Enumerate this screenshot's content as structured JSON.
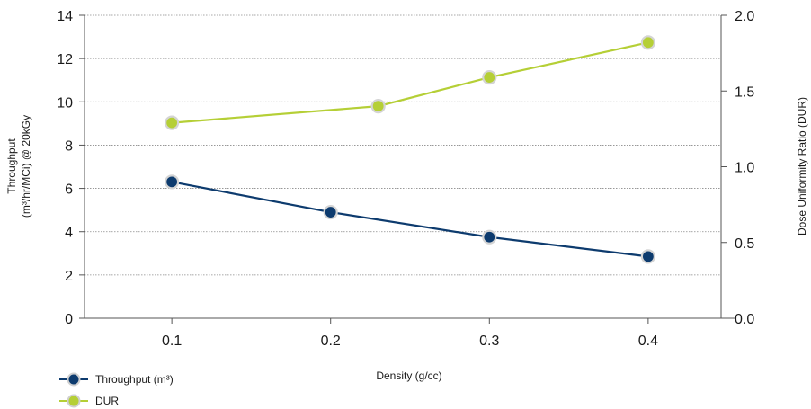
{
  "chart_data": {
    "type": "line",
    "xlabel": "Density (g/cc)",
    "ylabel_left": [
      "Throughput",
      "(m³/hr/MCi) @ 20kGy"
    ],
    "ylabel_right": "Dose Uniformity Ratio (DUR)",
    "x_ticks": [
      "0.1",
      "0.2",
      "0.3",
      "0.4"
    ],
    "xlim": [
      0.045,
      0.455
    ],
    "y_left_ticks": [
      "0",
      "2",
      "4",
      "6",
      "8",
      "10",
      "12",
      "14"
    ],
    "y_left_lim": [
      0,
      14
    ],
    "y_right_ticks": [
      "0.0",
      "0.5",
      "1.0",
      "1.5",
      "2.0"
    ],
    "y_right_lim": [
      0,
      2
    ],
    "grid": "horizontal dotted",
    "legend_position": "bottom-left",
    "series": [
      {
        "name": "Throughput (m³)",
        "axis": "left",
        "color": "#0d3b6e",
        "x": [
          0.1,
          0.2,
          0.3,
          0.4
        ],
        "y": [
          6.3,
          4.9,
          3.75,
          2.85
        ]
      },
      {
        "name": "DUR",
        "axis": "right",
        "color": "#b5cf36",
        "x": [
          0.1,
          0.23,
          0.3,
          0.4
        ],
        "y": [
          1.29,
          1.4,
          1.59,
          1.82
        ]
      }
    ]
  }
}
